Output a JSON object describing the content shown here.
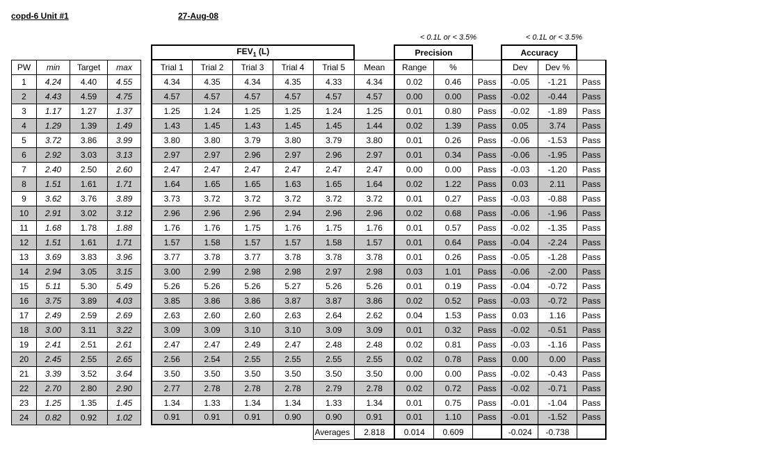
{
  "header": {
    "title": "copd-6 Unit #1",
    "date": "27-Aug-08",
    "criteria_text": "< 0.1L or < 3.5%"
  },
  "pw_table": {
    "col_pw": "PW",
    "col_min": "min",
    "col_target": "Target",
    "col_max": "max"
  },
  "group_headers": {
    "fev_html": "FEV<sub>1</sub> (L)",
    "precision": "Precision",
    "accuracy": "Accuracy"
  },
  "col_headers": {
    "trial1": "Trial 1",
    "trial2": "Trial 2",
    "trial3": "Trial 3",
    "trial4": "Trial 4",
    "trial5": "Trial 5",
    "mean": "Mean",
    "range": "Range",
    "pct": "%",
    "dev": "Dev",
    "devp": "Dev %"
  },
  "averages_label": "Averages",
  "averages": {
    "mean": "2.818",
    "range": "0.014",
    "pct": "0.609",
    "dev": "-0.024",
    "devp": "-0.738"
  },
  "rows": [
    {
      "pw": "1",
      "min": "4.24",
      "target": "4.40",
      "max": "4.55",
      "t1": "4.34",
      "t2": "4.35",
      "t3": "4.34",
      "t4": "4.35",
      "t5": "4.33",
      "mean": "4.34",
      "range": "0.02",
      "pct": "0.46",
      "ppf": "Pass",
      "dev": "-0.05",
      "devp": "-1.21",
      "apf": "Pass"
    },
    {
      "pw": "2",
      "min": "4.43",
      "target": "4.59",
      "max": "4.75",
      "t1": "4.57",
      "t2": "4.57",
      "t3": "4.57",
      "t4": "4.57",
      "t5": "4.57",
      "mean": "4.57",
      "range": "0.00",
      "pct": "0.00",
      "ppf": "Pass",
      "dev": "-0.02",
      "devp": "-0.44",
      "apf": "Pass"
    },
    {
      "pw": "3",
      "min": "1.17",
      "target": "1.27",
      "max": "1.37",
      "t1": "1.25",
      "t2": "1.24",
      "t3": "1.25",
      "t4": "1.25",
      "t5": "1.24",
      "mean": "1.25",
      "range": "0.01",
      "pct": "0.80",
      "ppf": "Pass",
      "dev": "-0.02",
      "devp": "-1.89",
      "apf": "Pass"
    },
    {
      "pw": "4",
      "min": "1.29",
      "target": "1.39",
      "max": "1.49",
      "t1": "1.43",
      "t2": "1.45",
      "t3": "1.43",
      "t4": "1.45",
      "t5": "1.45",
      "mean": "1.44",
      "range": "0.02",
      "pct": "1.39",
      "ppf": "Pass",
      "dev": "0.05",
      "devp": "3.74",
      "apf": "Pass"
    },
    {
      "pw": "5",
      "min": "3.72",
      "target": "3.86",
      "max": "3.99",
      "t1": "3.80",
      "t2": "3.80",
      "t3": "3.79",
      "t4": "3.80",
      "t5": "3.79",
      "mean": "3.80",
      "range": "0.01",
      "pct": "0.26",
      "ppf": "Pass",
      "dev": "-0.06",
      "devp": "-1.53",
      "apf": "Pass"
    },
    {
      "pw": "6",
      "min": "2.92",
      "target": "3.03",
      "max": "3.13",
      "t1": "2.97",
      "t2": "2.97",
      "t3": "2.96",
      "t4": "2.97",
      "t5": "2.96",
      "mean": "2.97",
      "range": "0.01",
      "pct": "0.34",
      "ppf": "Pass",
      "dev": "-0.06",
      "devp": "-1.95",
      "apf": "Pass"
    },
    {
      "pw": "7",
      "min": "2.40",
      "target": "2.50",
      "max": "2.60",
      "t1": "2.47",
      "t2": "2.47",
      "t3": "2.47",
      "t4": "2.47",
      "t5": "2.47",
      "mean": "2.47",
      "range": "0.00",
      "pct": "0.00",
      "ppf": "Pass",
      "dev": "-0.03",
      "devp": "-1.20",
      "apf": "Pass"
    },
    {
      "pw": "8",
      "min": "1.51",
      "target": "1.61",
      "max": "1.71",
      "t1": "1.64",
      "t2": "1.65",
      "t3": "1.65",
      "t4": "1.63",
      "t5": "1.65",
      "mean": "1.64",
      "range": "0.02",
      "pct": "1.22",
      "ppf": "Pass",
      "dev": "0.03",
      "devp": "2.11",
      "apf": "Pass"
    },
    {
      "pw": "9",
      "min": "3.62",
      "target": "3.76",
      "max": "3.89",
      "t1": "3.73",
      "t2": "3.72",
      "t3": "3.72",
      "t4": "3.72",
      "t5": "3.72",
      "mean": "3.72",
      "range": "0.01",
      "pct": "0.27",
      "ppf": "Pass",
      "dev": "-0.03",
      "devp": "-0.88",
      "apf": "Pass"
    },
    {
      "pw": "10",
      "min": "2.91",
      "target": "3.02",
      "max": "3.12",
      "t1": "2.96",
      "t2": "2.96",
      "t3": "2.96",
      "t4": "2.94",
      "t5": "2.96",
      "mean": "2.96",
      "range": "0.02",
      "pct": "0.68",
      "ppf": "Pass",
      "dev": "-0.06",
      "devp": "-1.96",
      "apf": "Pass"
    },
    {
      "pw": "11",
      "min": "1.68",
      "target": "1.78",
      "max": "1.88",
      "t1": "1.76",
      "t2": "1.76",
      "t3": "1.75",
      "t4": "1.76",
      "t5": "1.75",
      "mean": "1.76",
      "range": "0.01",
      "pct": "0.57",
      "ppf": "Pass",
      "dev": "-0.02",
      "devp": "-1.35",
      "apf": "Pass"
    },
    {
      "pw": "12",
      "min": "1.51",
      "target": "1.61",
      "max": "1.71",
      "t1": "1.57",
      "t2": "1.58",
      "t3": "1.57",
      "t4": "1.57",
      "t5": "1.58",
      "mean": "1.57",
      "range": "0.01",
      "pct": "0.64",
      "ppf": "Pass",
      "dev": "-0.04",
      "devp": "-2.24",
      "apf": "Pass"
    },
    {
      "pw": "13",
      "min": "3.69",
      "target": "3.83",
      "max": "3.96",
      "t1": "3.77",
      "t2": "3.78",
      "t3": "3.77",
      "t4": "3.78",
      "t5": "3.78",
      "mean": "3.78",
      "range": "0.01",
      "pct": "0.26",
      "ppf": "Pass",
      "dev": "-0.05",
      "devp": "-1.28",
      "apf": "Pass"
    },
    {
      "pw": "14",
      "min": "2.94",
      "target": "3.05",
      "max": "3.15",
      "t1": "3.00",
      "t2": "2.99",
      "t3": "2.98",
      "t4": "2.98",
      "t5": "2.97",
      "mean": "2.98",
      "range": "0.03",
      "pct": "1.01",
      "ppf": "Pass",
      "dev": "-0.06",
      "devp": "-2.00",
      "apf": "Pass"
    },
    {
      "pw": "15",
      "min": "5.11",
      "target": "5.30",
      "max": "5.49",
      "t1": "5.26",
      "t2": "5.26",
      "t3": "5.26",
      "t4": "5.27",
      "t5": "5.26",
      "mean": "5.26",
      "range": "0.01",
      "pct": "0.19",
      "ppf": "Pass",
      "dev": "-0.04",
      "devp": "-0.72",
      "apf": "Pass"
    },
    {
      "pw": "16",
      "min": "3.75",
      "target": "3.89",
      "max": "4.03",
      "t1": "3.85",
      "t2": "3.86",
      "t3": "3.86",
      "t4": "3.87",
      "t5": "3.87",
      "mean": "3.86",
      "range": "0.02",
      "pct": "0.52",
      "ppf": "Pass",
      "dev": "-0.03",
      "devp": "-0.72",
      "apf": "Pass"
    },
    {
      "pw": "17",
      "min": "2.49",
      "target": "2.59",
      "max": "2.69",
      "t1": "2.63",
      "t2": "2.60",
      "t3": "2.60",
      "t4": "2.63",
      "t5": "2.64",
      "mean": "2.62",
      "range": "0.04",
      "pct": "1.53",
      "ppf": "Pass",
      "dev": "0.03",
      "devp": "1.16",
      "apf": "Pass"
    },
    {
      "pw": "18",
      "min": "3.00",
      "target": "3.11",
      "max": "3.22",
      "t1": "3.09",
      "t2": "3.09",
      "t3": "3.10",
      "t4": "3.10",
      "t5": "3.09",
      "mean": "3.09",
      "range": "0.01",
      "pct": "0.32",
      "ppf": "Pass",
      "dev": "-0.02",
      "devp": "-0.51",
      "apf": "Pass"
    },
    {
      "pw": "19",
      "min": "2.41",
      "target": "2.51",
      "max": "2.61",
      "t1": "2.47",
      "t2": "2.47",
      "t3": "2.49",
      "t4": "2.47",
      "t5": "2.48",
      "mean": "2.48",
      "range": "0.02",
      "pct": "0.81",
      "ppf": "Pass",
      "dev": "-0.03",
      "devp": "-1.16",
      "apf": "Pass"
    },
    {
      "pw": "20",
      "min": "2.45",
      "target": "2.55",
      "max": "2.65",
      "t1": "2.56",
      "t2": "2.54",
      "t3": "2.55",
      "t4": "2.55",
      "t5": "2.55",
      "mean": "2.55",
      "range": "0.02",
      "pct": "0.78",
      "ppf": "Pass",
      "dev": "0.00",
      "devp": "0.00",
      "apf": "Pass"
    },
    {
      "pw": "21",
      "min": "3.39",
      "target": "3.52",
      "max": "3.64",
      "t1": "3.50",
      "t2": "3.50",
      "t3": "3.50",
      "t4": "3.50",
      "t5": "3.50",
      "mean": "3.50",
      "range": "0.00",
      "pct": "0.00",
      "ppf": "Pass",
      "dev": "-0.02",
      "devp": "-0.43",
      "apf": "Pass"
    },
    {
      "pw": "22",
      "min": "2.70",
      "target": "2.80",
      "max": "2.90",
      "t1": "2.77",
      "t2": "2.78",
      "t3": "2.78",
      "t4": "2.78",
      "t5": "2.79",
      "mean": "2.78",
      "range": "0.02",
      "pct": "0.72",
      "ppf": "Pass",
      "dev": "-0.02",
      "devp": "-0.71",
      "apf": "Pass"
    },
    {
      "pw": "23",
      "min": "1.25",
      "target": "1.35",
      "max": "1.45",
      "t1": "1.34",
      "t2": "1.33",
      "t3": "1.34",
      "t4": "1.34",
      "t5": "1.33",
      "mean": "1.34",
      "range": "0.01",
      "pct": "0.75",
      "ppf": "Pass",
      "dev": "-0.01",
      "devp": "-1.04",
      "apf": "Pass"
    },
    {
      "pw": "24",
      "min": "0.82",
      "target": "0.92",
      "max": "1.02",
      "t1": "0.91",
      "t2": "0.91",
      "t3": "0.91",
      "t4": "0.90",
      "t5": "0.90",
      "mean": "0.91",
      "range": "0.01",
      "pct": "1.10",
      "ppf": "Pass",
      "dev": "-0.01",
      "devp": "-1.52",
      "apf": "Pass"
    }
  ],
  "style": {
    "alt_row_bg": "#c7c7c7",
    "border_color": "#000000",
    "text_color": "#000000",
    "bg_color": "#ffffff",
    "font_family": "Arial",
    "font_size_pt": 9
  }
}
